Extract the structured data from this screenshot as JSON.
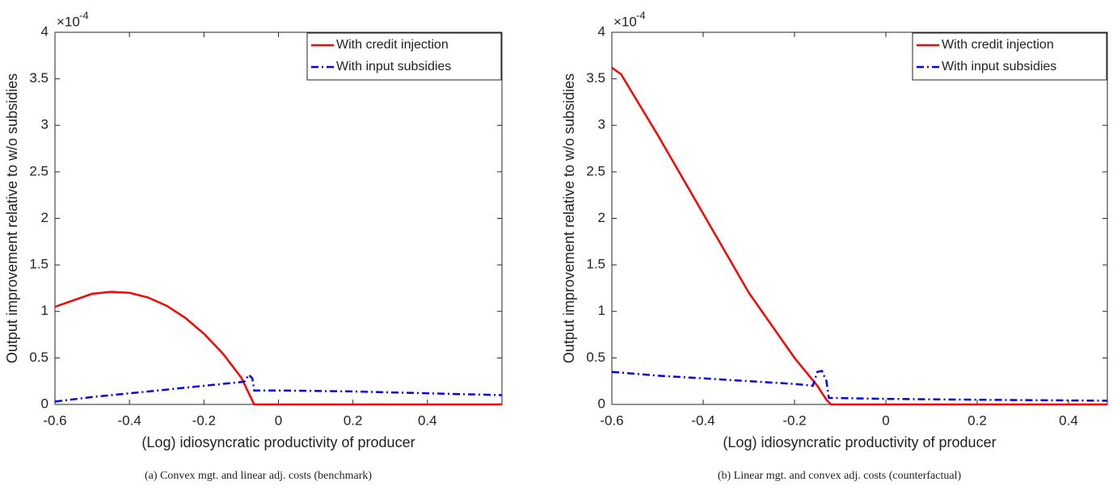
{
  "chart_data": [
    {
      "type": "line",
      "caption": "(a) Convex mgt. and linear adj. costs (benchmark)",
      "x_label": "(Log) idiosyncratic productivity of producer",
      "y_label": "Output improvement relative to w/o subsidies",
      "y_multiplier": "×10",
      "y_exponent": "-4",
      "xlim": [
        -0.6,
        0.6
      ],
      "xticks": [
        -0.6,
        -0.4,
        -0.2,
        0,
        0.2,
        0.4
      ],
      "ylim": [
        0,
        4
      ],
      "yticks": [
        0,
        0.5,
        1,
        1.5,
        2,
        2.5,
        3,
        3.5,
        4
      ],
      "legend": "top-right",
      "series": [
        {
          "name": "With credit injection",
          "color": "#ff0000",
          "style": "solid",
          "x": [
            -0.6,
            -0.5,
            -0.45,
            -0.4,
            -0.35,
            -0.3,
            -0.25,
            -0.2,
            -0.15,
            -0.1,
            -0.065,
            0,
            0.6
          ],
          "values": [
            1.05,
            1.19,
            1.21,
            1.2,
            1.15,
            1.06,
            0.93,
            0.76,
            0.55,
            0.29,
            0,
            0,
            0
          ]
        },
        {
          "name": "With input subsidies",
          "color": "#0000ff",
          "style": "dashdot",
          "x": [
            -0.6,
            -0.5,
            -0.4,
            -0.3,
            -0.2,
            -0.1,
            -0.09,
            -0.08,
            -0.07,
            -0.065,
            0,
            0.2,
            0.4,
            0.6
          ],
          "values": [
            0.03,
            0.08,
            0.12,
            0.16,
            0.2,
            0.24,
            0.25,
            0.32,
            0.28,
            0.15,
            0.15,
            0.14,
            0.12,
            0.1
          ]
        }
      ]
    },
    {
      "type": "line",
      "caption": "(b) Linear mgt. and convex adj. costs (counterfactual)",
      "x_label": "(Log) idiosyncratic productivity of producer",
      "y_label": "Output improvement relative to w/o subsidies",
      "y_multiplier": "×10",
      "y_exponent": "-4",
      "xlim": [
        -0.6,
        0.485
      ],
      "xticks": [
        -0.6,
        -0.4,
        -0.2,
        0,
        0.2,
        0.4
      ],
      "ylim": [
        0,
        4
      ],
      "yticks": [
        0,
        0.5,
        1,
        1.5,
        2,
        2.5,
        3,
        3.5,
        4
      ],
      "legend": "top-right",
      "series": [
        {
          "name": "With credit injection",
          "color": "#ff0000",
          "style": "solid",
          "x": [
            -0.6,
            -0.58,
            -0.5,
            -0.4,
            -0.3,
            -0.2,
            -0.15,
            -0.13,
            -0.12,
            0,
            0.485
          ],
          "values": [
            3.62,
            3.55,
            2.9,
            2.05,
            1.2,
            0.5,
            0.2,
            0.05,
            0,
            0,
            0
          ]
        },
        {
          "name": "With input subsidies",
          "color": "#0000ff",
          "style": "dashdot",
          "x": [
            -0.6,
            -0.5,
            -0.4,
            -0.3,
            -0.2,
            -0.16,
            -0.15,
            -0.14,
            -0.13,
            -0.125,
            0,
            0.2,
            0.485
          ],
          "values": [
            0.35,
            0.31,
            0.28,
            0.25,
            0.22,
            0.2,
            0.35,
            0.36,
            0.25,
            0.07,
            0.06,
            0.05,
            0.04
          ]
        }
      ]
    }
  ]
}
